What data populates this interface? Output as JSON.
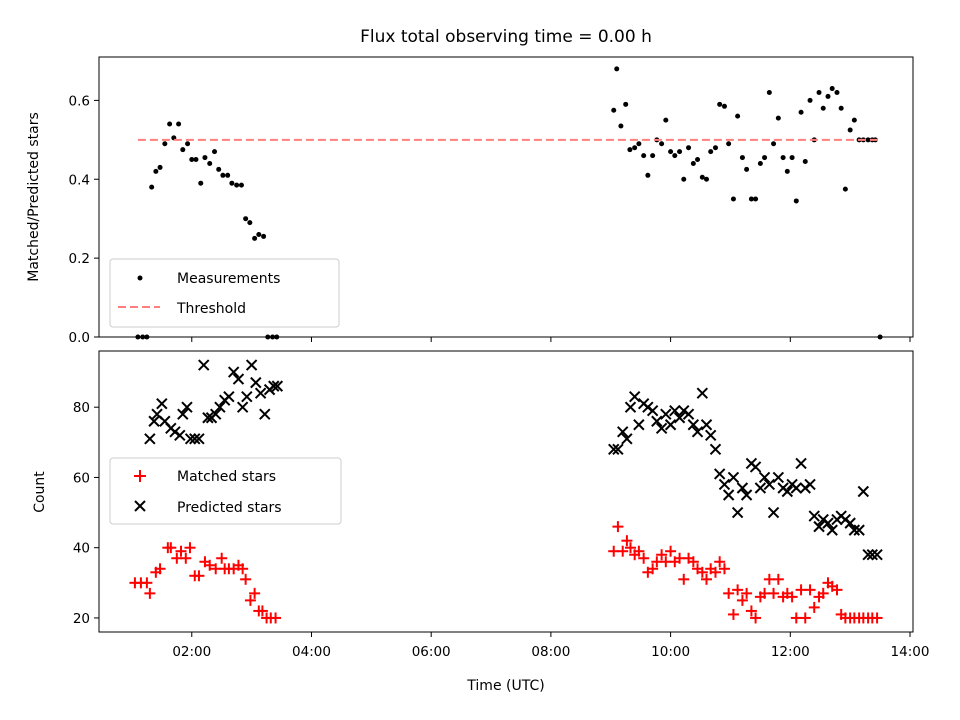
{
  "chart_data": {
    "type": "scatter",
    "title": "Flux total observing time = 0.00 h",
    "xlabel": "Time (UTC)",
    "xlim": [
      0.45,
      14.05
    ],
    "xticks": [
      {
        "value": 2,
        "label": "02:00"
      },
      {
        "value": 4,
        "label": "04:00"
      },
      {
        "value": 6,
        "label": "06:00"
      },
      {
        "value": 8,
        "label": "08:00"
      },
      {
        "value": 10,
        "label": "10:00"
      },
      {
        "value": 12,
        "label": "12:00"
      },
      {
        "value": 14,
        "label": "14:00"
      }
    ],
    "panels": [
      {
        "ylabel": "Matched/Predicted stars",
        "ylim": [
          0,
          0.71
        ],
        "yticks": [
          {
            "value": 0,
            "label": "0.0"
          },
          {
            "value": 0.2,
            "label": "0.2"
          },
          {
            "value": 0.4,
            "label": "0.4"
          },
          {
            "value": 0.6,
            "label": "0.6"
          }
        ],
        "legend_position": "lower-left",
        "series": [
          {
            "name": "Measurements",
            "marker": "dot",
            "color": "#000000",
            "x": [
              1.1,
              1.18,
              1.25,
              1.33,
              1.4,
              1.47,
              1.55,
              1.63,
              1.7,
              1.78,
              1.85,
              1.93,
              2.0,
              2.07,
              2.15,
              2.22,
              2.3,
              2.38,
              2.45,
              2.52,
              2.6,
              2.67,
              2.75,
              2.83,
              2.9,
              2.97,
              3.05,
              3.12,
              3.2,
              3.27,
              3.35,
              3.42,
              13.5,
              9.05,
              9.1,
              9.17,
              9.25,
              9.32,
              9.4,
              9.47,
              9.55,
              9.62,
              9.7,
              9.77,
              9.85,
              9.92,
              10.0,
              10.07,
              10.15,
              10.22,
              10.3,
              10.38,
              10.45,
              10.53,
              10.6,
              10.67,
              10.75,
              10.82,
              10.9,
              10.97,
              11.05,
              11.12,
              11.2,
              11.27,
              11.35,
              11.42,
              11.5,
              11.57,
              11.65,
              11.72,
              11.8,
              11.88,
              11.95,
              12.03,
              12.1,
              12.18,
              12.25,
              12.33,
              12.4,
              12.48,
              12.55,
              12.63,
              12.7,
              12.78,
              12.85,
              12.92,
              13.0,
              13.07,
              13.15,
              13.22,
              13.3,
              13.37,
              13.42
            ],
            "y": [
              0,
              0,
              0,
              0.38,
              0.42,
              0.43,
              0.49,
              0.54,
              0.505,
              0.54,
              0.475,
              0.49,
              0.45,
              0.45,
              0.39,
              0.455,
              0.44,
              0.47,
              0.425,
              0.41,
              0.41,
              0.39,
              0.385,
              0.385,
              0.3,
              0.29,
              0.25,
              0.26,
              0.255,
              0,
              0,
              0,
              0,
              0.575,
              0.68,
              0.535,
              0.59,
              0.475,
              0.48,
              0.49,
              0.46,
              0.41,
              0.46,
              0.5,
              0.49,
              0.55,
              0.47,
              0.46,
              0.47,
              0.4,
              0.48,
              0.44,
              0.45,
              0.405,
              0.4,
              0.47,
              0.48,
              0.59,
              0.585,
              0.49,
              0.35,
              0.56,
              0.455,
              0.425,
              0.35,
              0.35,
              0.44,
              0.455,
              0.62,
              0.49,
              0.555,
              0.455,
              0.42,
              0.455,
              0.345,
              0.57,
              0.445,
              0.6,
              0.5,
              0.62,
              0.58,
              0.61,
              0.63,
              0.62,
              0.58,
              0.375,
              0.525,
              0.55,
              0.5,
              0.5,
              0.5,
              0.5,
              0.5
            ]
          },
          {
            "name": "Threshold",
            "marker": "dashed-line",
            "color": "#ff7f7f",
            "x": [
              1.1,
              13.5
            ],
            "y": [
              0.5,
              0.5
            ]
          }
        ]
      },
      {
        "ylabel": "Count",
        "ylim": [
          16,
          96
        ],
        "yticks": [
          {
            "value": 20,
            "label": "20"
          },
          {
            "value": 40,
            "label": "40"
          },
          {
            "value": 60,
            "label": "60"
          },
          {
            "value": 80,
            "label": "80"
          }
        ],
        "legend_position": "center-left",
        "series": [
          {
            "name": "Matched stars",
            "marker": "plus",
            "color": "#ff0000",
            "x": [
              1.05,
              1.15,
              1.25,
              1.3,
              1.4,
              1.47,
              1.6,
              1.65,
              1.75,
              1.82,
              1.9,
              1.97,
              2.05,
              2.12,
              2.22,
              2.3,
              2.4,
              2.5,
              2.55,
              2.62,
              2.7,
              2.78,
              2.85,
              2.9,
              2.98,
              3.05,
              3.12,
              3.18,
              3.25,
              3.32,
              3.4,
              9.05,
              9.12,
              9.2,
              9.27,
              9.33,
              9.4,
              9.47,
              9.55,
              9.62,
              9.7,
              9.77,
              9.85,
              9.92,
              10.0,
              10.07,
              10.15,
              10.22,
              10.3,
              10.38,
              10.45,
              10.53,
              10.6,
              10.67,
              10.75,
              10.82,
              10.9,
              10.97,
              11.05,
              11.12,
              11.2,
              11.27,
              11.35,
              11.42,
              11.5,
              11.57,
              11.65,
              11.72,
              11.8,
              11.88,
              11.95,
              12.03,
              12.1,
              12.18,
              12.25,
              12.33,
              12.4,
              12.48,
              12.55,
              12.63,
              12.7,
              12.78,
              12.85,
              12.92,
              13.0,
              13.07,
              13.15,
              13.22,
              13.3,
              13.37,
              13.45
            ],
            "y": [
              30,
              30,
              30,
              27,
              33,
              34,
              40,
              40,
              37,
              39,
              37,
              40,
              32,
              32,
              36,
              35,
              34,
              37,
              34,
              34,
              34,
              35,
              34,
              31,
              25,
              27,
              22,
              22,
              20,
              20,
              20,
              39,
              46,
              39,
              42,
              40,
              38,
              39,
              37,
              33,
              34,
              36,
              38,
              36,
              39,
              36,
              37,
              31,
              37,
              36,
              34,
              33,
              31,
              34,
              33,
              36,
              34,
              27,
              21,
              28,
              25,
              27,
              22,
              20,
              26,
              27,
              31,
              27,
              31,
              26,
              27,
              26,
              20,
              28,
              20,
              28,
              23,
              26,
              27,
              30,
              29,
              28,
              21,
              20,
              20,
              20,
              20,
              20,
              20,
              20,
              20
            ]
          },
          {
            "name": "Predicted stars",
            "marker": "x",
            "color": "#000000",
            "x": [
              1.3,
              1.37,
              1.42,
              1.5,
              1.55,
              1.65,
              1.72,
              1.8,
              1.85,
              1.92,
              1.98,
              2.05,
              2.12,
              2.2,
              2.27,
              2.33,
              2.4,
              2.47,
              2.55,
              2.62,
              2.7,
              2.78,
              2.85,
              2.92,
              3.0,
              3.07,
              3.15,
              3.22,
              3.3,
              3.37,
              3.43,
              9.05,
              9.12,
              9.2,
              9.27,
              9.33,
              9.4,
              9.47,
              9.55,
              9.62,
              9.7,
              9.77,
              9.85,
              9.92,
              10.0,
              10.07,
              10.15,
              10.22,
              10.3,
              10.38,
              10.45,
              10.53,
              10.6,
              10.67,
              10.75,
              10.82,
              10.9,
              10.97,
              11.05,
              11.12,
              11.2,
              11.27,
              11.35,
              11.42,
              11.5,
              11.57,
              11.65,
              11.72,
              11.8,
              11.88,
              11.95,
              12.03,
              12.1,
              12.18,
              12.25,
              12.33,
              12.4,
              12.48,
              12.55,
              12.63,
              12.7,
              12.78,
              12.85,
              12.92,
              13.0,
              13.07,
              13.15,
              13.22,
              13.3,
              13.37,
              13.45
            ],
            "y": [
              71,
              76,
              78,
              81,
              76,
              74,
              73,
              72,
              78,
              80,
              71,
              71,
              71,
              92,
              77,
              77,
              78,
              80,
              82,
              83,
              90,
              88,
              80,
              83,
              92,
              87,
              84,
              78,
              85,
              86,
              86,
              68,
              68,
              73,
              71,
              80,
              83,
              75,
              81,
              80,
              79,
              76,
              74,
              78,
              75,
              79,
              77,
              79,
              78,
              75,
              73,
              84,
              75,
              72,
              68,
              61,
              58,
              55,
              60,
              50,
              57,
              55,
              64,
              63,
              57,
              60,
              58,
              50,
              60,
              57,
              56,
              58,
              57,
              64,
              57,
              58,
              49,
              46,
              48,
              47,
              45,
              48,
              49,
              48,
              47,
              45,
              45,
              56,
              38,
              38,
              38
            ]
          }
        ]
      }
    ]
  }
}
